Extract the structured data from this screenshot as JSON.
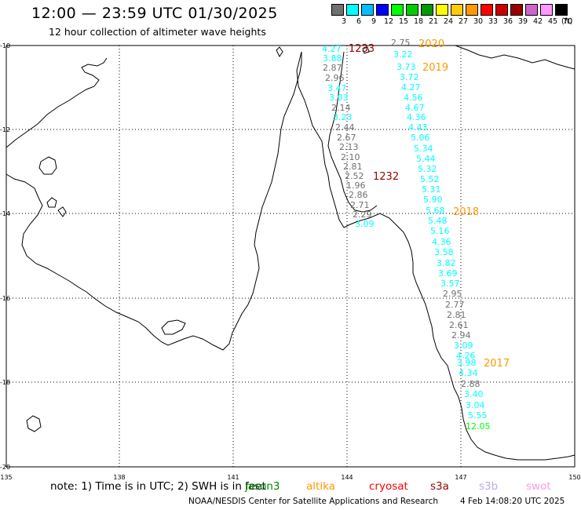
{
  "title": "12:00 — 23:59 UTC 01/30/2025",
  "subtitle": "12 hour collection of altimeter wave heights",
  "legend": {
    "colors": [
      "#707070",
      "#00ffff",
      "#00bfff",
      "#0000ff",
      "#00ff00",
      "#00cc00",
      "#009900",
      "#ffff00",
      "#ffcc00",
      "#ff9900",
      "#ff0000",
      "#cc0000",
      "#990000",
      "#cc66cc",
      "#ff99ff",
      "#000000"
    ],
    "labels": [
      "3",
      "6",
      "9",
      "12",
      "15",
      "18",
      "21",
      "24",
      "27",
      "30",
      "33",
      "36",
      "39",
      "42",
      "45",
      "70"
    ],
    "unit": "(ft)"
  },
  "axes": {
    "lat_labels": [
      "-10",
      "-12",
      "-14",
      "-16",
      "-18",
      "-20"
    ],
    "lon_labels": [
      "135",
      "138",
      "141",
      "144",
      "147",
      "150"
    ]
  },
  "tracks": [
    {
      "label": "2020",
      "color": "#ff9900"
    },
    {
      "label": "2019",
      "color": "#ff9900"
    },
    {
      "label": "2018",
      "color": "#ff9900"
    },
    {
      "label": "2017",
      "color": "#ff9900"
    },
    {
      "label": "1233",
      "color": "#990000"
    },
    {
      "label": "1232",
      "color": "#990000"
    }
  ],
  "observations": [
    {
      "v": "4.27",
      "c": "#00ffff"
    },
    {
      "v": "3.88",
      "c": "#00ffff"
    },
    {
      "v": "2.87",
      "c": "#707070"
    },
    {
      "v": "2.96",
      "c": "#707070"
    },
    {
      "v": "3.47",
      "c": "#00ffff"
    },
    {
      "v": "3.03",
      "c": "#00ffff"
    },
    {
      "v": "2.14",
      "c": "#707070"
    },
    {
      "v": "3.23",
      "c": "#00ffff"
    },
    {
      "v": "2.44",
      "c": "#707070"
    },
    {
      "v": "2.67",
      "c": "#707070"
    },
    {
      "v": "2.13",
      "c": "#707070"
    },
    {
      "v": "2.10",
      "c": "#707070"
    },
    {
      "v": "2.81",
      "c": "#707070"
    },
    {
      "v": "2.52",
      "c": "#707070"
    },
    {
      "v": "1.96",
      "c": "#707070"
    },
    {
      "v": "2.86",
      "c": "#707070"
    },
    {
      "v": "2.71",
      "c": "#707070"
    },
    {
      "v": "2.29",
      "c": "#707070"
    },
    {
      "v": "3.09",
      "c": "#00ffff"
    },
    {
      "v": "2.75",
      "c": "#707070"
    },
    {
      "v": "3.22",
      "c": "#00ffff"
    },
    {
      "v": "3.73",
      "c": "#00ffff"
    },
    {
      "v": "3.72",
      "c": "#00ffff"
    },
    {
      "v": "4.27",
      "c": "#00ffff"
    },
    {
      "v": "4.56",
      "c": "#00ffff"
    },
    {
      "v": "4.67",
      "c": "#00ffff"
    },
    {
      "v": "4.36",
      "c": "#00ffff"
    },
    {
      "v": "4.43",
      "c": "#00ffff"
    },
    {
      "v": "5.06",
      "c": "#00ffff"
    },
    {
      "v": "5.34",
      "c": "#00ffff"
    },
    {
      "v": "5.44",
      "c": "#00ffff"
    },
    {
      "v": "5.32",
      "c": "#00ffff"
    },
    {
      "v": "5.52",
      "c": "#00ffff"
    },
    {
      "v": "5.31",
      "c": "#00ffff"
    },
    {
      "v": "5.90",
      "c": "#00ffff"
    },
    {
      "v": "5.68",
      "c": "#00ffff"
    },
    {
      "v": "5.48",
      "c": "#00ffff"
    },
    {
      "v": "5.16",
      "c": "#00ffff"
    },
    {
      "v": "4.36",
      "c": "#00ffff"
    },
    {
      "v": "3.58",
      "c": "#00ffff"
    },
    {
      "v": "3.82",
      "c": "#00ffff"
    },
    {
      "v": "3.69",
      "c": "#00ffff"
    },
    {
      "v": "3.57",
      "c": "#00ffff"
    },
    {
      "v": "2.95",
      "c": "#707070"
    },
    {
      "v": "2.77",
      "c": "#707070"
    },
    {
      "v": "2.81",
      "c": "#707070"
    },
    {
      "v": "2.61",
      "c": "#707070"
    },
    {
      "v": "2.94",
      "c": "#707070"
    },
    {
      "v": "3.09",
      "c": "#00ffff"
    },
    {
      "v": "4.26",
      "c": "#00ffff"
    },
    {
      "v": "3.98",
      "c": "#00ffff"
    },
    {
      "v": "4.34",
      "c": "#00ffff"
    },
    {
      "v": "2.88",
      "c": "#707070"
    },
    {
      "v": "3.40",
      "c": "#00ffff"
    },
    {
      "v": "3.04",
      "c": "#00ffff"
    },
    {
      "v": "5.55",
      "c": "#00ffff"
    },
    {
      "v": "12.05",
      "c": "#00ff00"
    }
  ],
  "footer": {
    "note": "note: 1) Time is in UTC; 2) SWH is in feet",
    "satellites": [
      {
        "name": "jason3",
        "color": "#008800"
      },
      {
        "name": "altika",
        "color": "#ff9900"
      },
      {
        "name": "cryosat",
        "color": "#ff0000"
      },
      {
        "name": "s3a",
        "color": "#990000"
      },
      {
        "name": "s3b",
        "color": "#bbaaee"
      },
      {
        "name": "swot",
        "color": "#ff99dd"
      }
    ],
    "credit": "NOAA/NESDIS Center for Satellite Applications and Research",
    "timestamp": "4 Feb 14:08:20 UTC 2025"
  }
}
